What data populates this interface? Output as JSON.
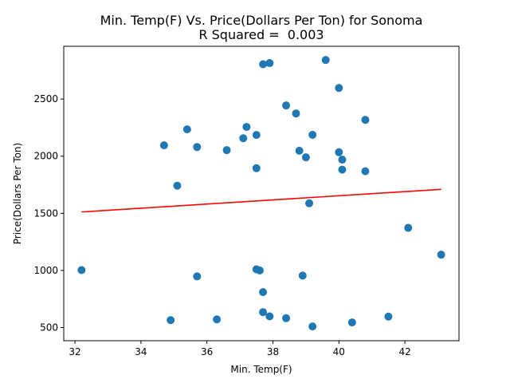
{
  "chart_data": {
    "type": "scatter",
    "title": "Min. Temp(F) Vs. Price(Dollars Per Ton) for Sonoma",
    "subtitle": "R Squared =  0.003",
    "xlabel": "Min. Temp(F)",
    "ylabel": "Price(Dollars Per Ton)",
    "xlim": [
      31.66,
      43.64
    ],
    "ylim": [
      385,
      2962
    ],
    "xticks": [
      32,
      34,
      36,
      38,
      40,
      42
    ],
    "yticks": [
      500,
      1000,
      1500,
      2000,
      2500
    ],
    "grid": false,
    "point_color": "#1f77b4",
    "line_color": "#ff0000",
    "series": [
      {
        "values": [
          {
            "x": 32.2,
            "y": 1003
          },
          {
            "x": 34.7,
            "y": 2095
          },
          {
            "x": 34.9,
            "y": 565
          },
          {
            "x": 35.1,
            "y": 1742
          },
          {
            "x": 35.4,
            "y": 2235
          },
          {
            "x": 35.7,
            "y": 2080
          },
          {
            "x": 35.7,
            "y": 948
          },
          {
            "x": 36.3,
            "y": 572
          },
          {
            "x": 36.6,
            "y": 2053
          },
          {
            "x": 37.1,
            "y": 2157
          },
          {
            "x": 37.2,
            "y": 2256
          },
          {
            "x": 37.5,
            "y": 2186
          },
          {
            "x": 37.5,
            "y": 1895
          },
          {
            "x": 37.5,
            "y": 1010
          },
          {
            "x": 37.6,
            "y": 1000
          },
          {
            "x": 37.7,
            "y": 2805
          },
          {
            "x": 37.7,
            "y": 810
          },
          {
            "x": 37.7,
            "y": 635
          },
          {
            "x": 37.9,
            "y": 2815
          },
          {
            "x": 37.9,
            "y": 598
          },
          {
            "x": 38.4,
            "y": 2444
          },
          {
            "x": 38.4,
            "y": 582
          },
          {
            "x": 38.7,
            "y": 2374
          },
          {
            "x": 38.8,
            "y": 2048
          },
          {
            "x": 38.9,
            "y": 955
          },
          {
            "x": 39.0,
            "y": 1990
          },
          {
            "x": 39.1,
            "y": 1588
          },
          {
            "x": 39.2,
            "y": 2187
          },
          {
            "x": 39.2,
            "y": 510
          },
          {
            "x": 39.6,
            "y": 2842
          },
          {
            "x": 40.0,
            "y": 2597
          },
          {
            "x": 40.0,
            "y": 2035
          },
          {
            "x": 40.1,
            "y": 1970
          },
          {
            "x": 40.1,
            "y": 1882
          },
          {
            "x": 40.4,
            "y": 545
          },
          {
            "x": 40.8,
            "y": 2318
          },
          {
            "x": 40.8,
            "y": 1868
          },
          {
            "x": 41.5,
            "y": 596
          },
          {
            "x": 42.1,
            "y": 1373
          },
          {
            "x": 43.1,
            "y": 1138
          }
        ]
      }
    ],
    "regression_line": {
      "x": [
        32.2,
        43.1
      ],
      "y": [
        1512,
        1710
      ]
    }
  }
}
